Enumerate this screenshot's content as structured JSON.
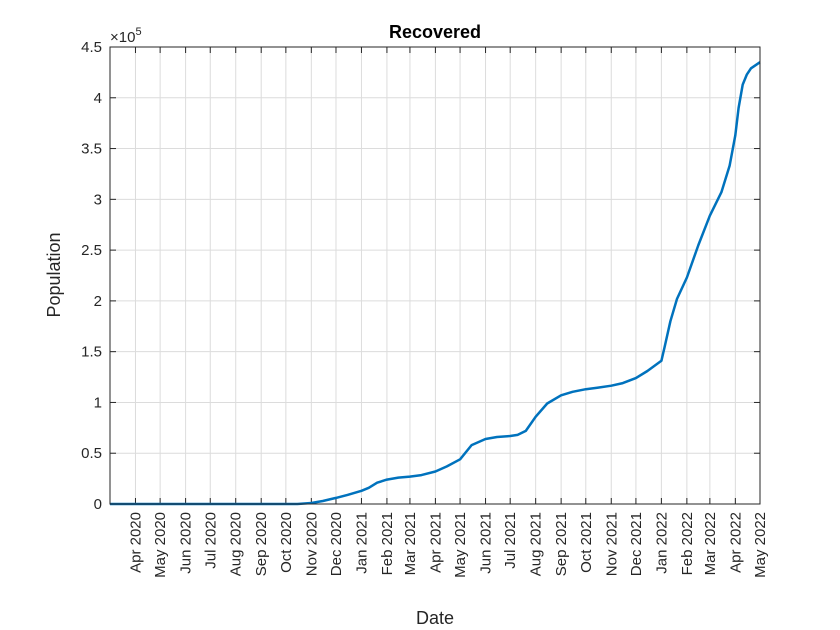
{
  "chart_data": {
    "type": "line",
    "title": "Recovered",
    "xlabel": "Date",
    "ylabel": "Population",
    "y_exponent_label": "×10",
    "y_exponent_power": "5",
    "x_ticks": [
      "Apr 2020",
      "May 2020",
      "Jun 2020",
      "Jul 2020",
      "Aug 2020",
      "Sep 2020",
      "Oct 2020",
      "Nov 2020",
      "Dec 2020",
      "Jan 2021",
      "Feb 2021",
      "Mar 2021",
      "Apr 2021",
      "May 2021",
      "Jun 2021",
      "Jul 2021",
      "Aug 2021",
      "Sep 2021",
      "Oct 2021",
      "Nov 2021",
      "Dec 2021",
      "Jan 2022",
      "Feb 2022",
      "Mar 2022",
      "Apr 2022",
      "May 2022"
    ],
    "y_ticks": [
      "0",
      "0.5",
      "1",
      "1.5",
      "2",
      "2.5",
      "3",
      "3.5",
      "4",
      "4.5"
    ],
    "y_tick_values": [
      0,
      0.5,
      1,
      1.5,
      2,
      2.5,
      3,
      3.5,
      4,
      4.5
    ],
    "xlim": [
      "2020-03-01",
      "2022-05-01"
    ],
    "ylim": [
      0,
      4.5
    ],
    "y_units": "×10^5",
    "grid": true,
    "line_color": "#0072BD",
    "series": [
      {
        "x": [
          "2020-03-01",
          "2020-05-01",
          "2020-07-01",
          "2020-09-01",
          "2020-10-15",
          "2020-11-01",
          "2020-11-15",
          "2020-12-01",
          "2020-12-15",
          "2021-01-01",
          "2021-01-10",
          "2021-01-20",
          "2021-02-01",
          "2021-02-15",
          "2021-03-01",
          "2021-03-15",
          "2021-04-01",
          "2021-04-15",
          "2021-05-01",
          "2021-05-15",
          "2021-06-01",
          "2021-06-15",
          "2021-07-01",
          "2021-07-10",
          "2021-07-20",
          "2021-08-01",
          "2021-08-15",
          "2021-09-01",
          "2021-09-15",
          "2021-10-01",
          "2021-10-15",
          "2021-11-01",
          "2021-11-15",
          "2021-12-01",
          "2021-12-15",
          "2022-01-01",
          "2022-01-05",
          "2022-01-12",
          "2022-01-20",
          "2022-02-01",
          "2022-02-15",
          "2022-03-01",
          "2022-03-15",
          "2022-03-25",
          "2022-04-01",
          "2022-04-05",
          "2022-04-10",
          "2022-04-15",
          "2022-04-20",
          "2022-05-01"
        ],
        "y": [
          0,
          0,
          0,
          0,
          0,
          0.01,
          0.03,
          0.06,
          0.09,
          0.13,
          0.16,
          0.21,
          0.24,
          0.26,
          0.27,
          0.285,
          0.32,
          0.37,
          0.44,
          0.58,
          0.64,
          0.66,
          0.67,
          0.68,
          0.72,
          0.86,
          0.99,
          1.07,
          1.105,
          1.13,
          1.145,
          1.165,
          1.19,
          1.24,
          1.31,
          1.41,
          1.55,
          1.8,
          2.02,
          2.23,
          2.55,
          2.84,
          3.07,
          3.33,
          3.63,
          3.9,
          4.13,
          4.23,
          4.29,
          4.35
        ]
      }
    ]
  }
}
